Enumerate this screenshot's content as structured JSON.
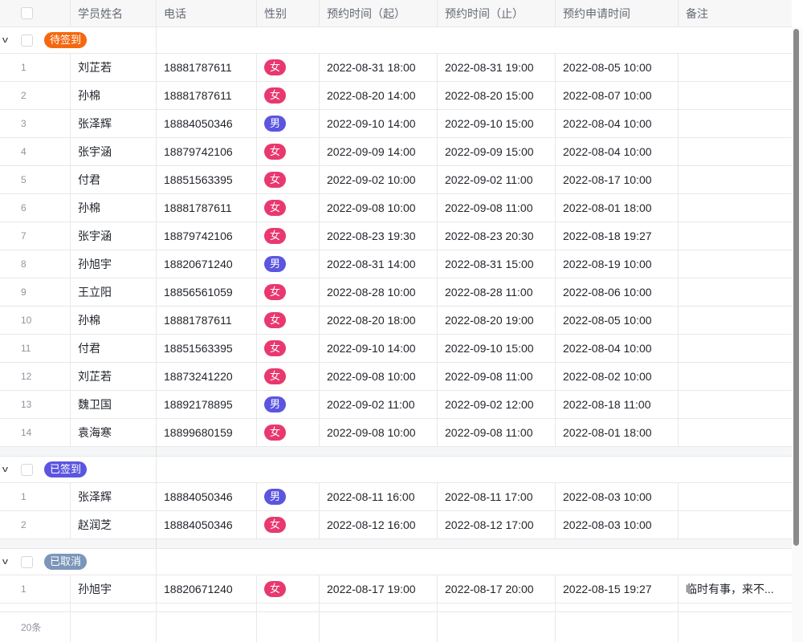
{
  "columns": [
    "学员姓名",
    "电话",
    "性别",
    "预约时间（起）",
    "预约时间（止）",
    "预约申请时间",
    "备注"
  ],
  "colors": {
    "female": "#e8386f",
    "male": "#5b55e0"
  },
  "groups": [
    {
      "label": "待签到",
      "color": "#f5680f",
      "rows": [
        [
          "1",
          "刘芷若",
          "18881787611",
          "女",
          "2022-08-31 18:00",
          "2022-08-31 19:00",
          "2022-08-05 10:00",
          ""
        ],
        [
          "2",
          "孙棉",
          "18881787611",
          "女",
          "2022-08-20 14:00",
          "2022-08-20 15:00",
          "2022-08-07 10:00",
          ""
        ],
        [
          "3",
          "张泽辉",
          "18884050346",
          "男",
          "2022-09-10 14:00",
          "2022-09-10 15:00",
          "2022-08-04 10:00",
          ""
        ],
        [
          "4",
          "张宇涵",
          "18879742106",
          "女",
          "2022-09-09 14:00",
          "2022-09-09 15:00",
          "2022-08-04 10:00",
          ""
        ],
        [
          "5",
          "付君",
          "18851563395",
          "女",
          "2022-09-02 10:00",
          "2022-09-02 11:00",
          "2022-08-17 10:00",
          ""
        ],
        [
          "6",
          "孙棉",
          "18881787611",
          "女",
          "2022-09-08 10:00",
          "2022-09-08 11:00",
          "2022-08-01 18:00",
          ""
        ],
        [
          "7",
          "张宇涵",
          "18879742106",
          "女",
          "2022-08-23 19:30",
          "2022-08-23 20:30",
          "2022-08-18 19:27",
          ""
        ],
        [
          "8",
          "孙旭宇",
          "18820671240",
          "男",
          "2022-08-31 14:00",
          "2022-08-31 15:00",
          "2022-08-19 10:00",
          ""
        ],
        [
          "9",
          "王立阳",
          "18856561059",
          "女",
          "2022-08-28 10:00",
          "2022-08-28 11:00",
          "2022-08-06 10:00",
          ""
        ],
        [
          "10",
          "孙棉",
          "18881787611",
          "女",
          "2022-08-20 18:00",
          "2022-08-20 19:00",
          "2022-08-05 10:00",
          ""
        ],
        [
          "11",
          "付君",
          "18851563395",
          "女",
          "2022-09-10 14:00",
          "2022-09-10 15:00",
          "2022-08-04 10:00",
          ""
        ],
        [
          "12",
          "刘芷若",
          "18873241220",
          "女",
          "2022-09-08 10:00",
          "2022-09-08 11:00",
          "2022-08-02 10:00",
          ""
        ],
        [
          "13",
          "魏卫国",
          "18892178895",
          "男",
          "2022-09-02 11:00",
          "2022-09-02 12:00",
          "2022-08-18 11:00",
          ""
        ],
        [
          "14",
          "袁海寒",
          "18899680159",
          "女",
          "2022-09-08 10:00",
          "2022-09-08 11:00",
          "2022-08-01 18:00",
          ""
        ]
      ]
    },
    {
      "label": "已签到",
      "color": "#5b55e0",
      "rows": [
        [
          "1",
          "张泽辉",
          "18884050346",
          "男",
          "2022-08-11 16:00",
          "2022-08-11 17:00",
          "2022-08-03 10:00",
          ""
        ],
        [
          "2",
          "赵润芝",
          "18884050346",
          "女",
          "2022-08-12 16:00",
          "2022-08-12 17:00",
          "2022-08-03 10:00",
          ""
        ]
      ]
    },
    {
      "label": "已取消",
      "color": "#7b96b9",
      "rows": [
        [
          "1",
          "孙旭宇",
          "18820671240",
          "女",
          "2022-08-17 19:00",
          "2022-08-17 20:00",
          "2022-08-15 19:27",
          "临时有事，来不..."
        ]
      ]
    }
  ],
  "footer": {
    "count": "20条"
  }
}
